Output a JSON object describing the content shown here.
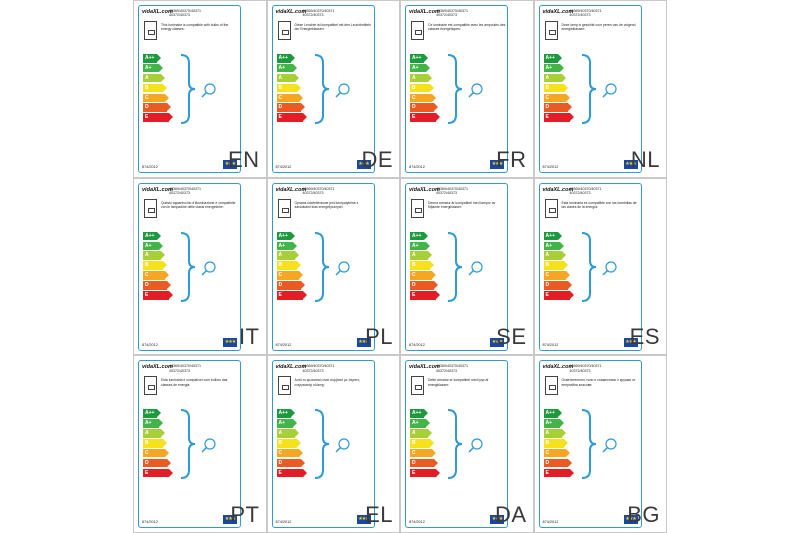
{
  "colors": {
    "card_border": "#2f9ad4",
    "eu_flag": "#1a47a3",
    "classes": [
      "#1d9a3e",
      "#43b448",
      "#a6cf38",
      "#f5e21c",
      "#f5a623",
      "#ea5a23",
      "#e21d26"
    ]
  },
  "card": {
    "brand": "vidaXL.com",
    "codes_line1": "40369/40370/40371",
    "codes_line2": "40372/40373",
    "regulation": "874/2012",
    "eu_flag_icon": "eu-flag-icon"
  },
  "energy_classes": [
    "A++",
    "A+",
    "A",
    "B",
    "C",
    "D",
    "E"
  ],
  "panels": [
    {
      "lang": "EN",
      "text": "This luminaire is compatible with bulbs of the energy classes:"
    },
    {
      "lang": "DE",
      "text": "Diese Leuchte ist kompatibel mit den Leuchtmitteln der Energieklassen:"
    },
    {
      "lang": "FR",
      "text": "Ce luminaire est compatible avec les ampoules des classes énergétiques:"
    },
    {
      "lang": "NL",
      "text": "Deze lamp is geschikt voor peren van de volgend energieklassen:"
    },
    {
      "lang": "IT",
      "text": "Questo apparecchio d'illuminazione è compatibile con le lampadine delle classi energetiche:"
    },
    {
      "lang": "PL",
      "text": "Oprawa oświetleniowe jest kompatybilna z żarówkami klas energetycznych:"
    },
    {
      "lang": "SE",
      "text": "Denna armatur är kompatibel med lampor av följande energiklasser:"
    },
    {
      "lang": "ES",
      "text": "Esta luminaria es compatible con las bombillas de las clases de la energía:"
    },
    {
      "lang": "PT",
      "text": "Esta luminária é compatível com bulbos das classes de energia:"
    },
    {
      "lang": "EL",
      "text": "Αυτό το φωτιστικό είναι συμβατό με λάμπες ενεργειακής κλάσης:"
    },
    {
      "lang": "DA",
      "text": "Dette armatur er kompatibel med lysp af energiklasser:"
    },
    {
      "lang": "BG",
      "text": "Осветителното тяло е съвместимо с крушки от енергийни класове:"
    }
  ]
}
